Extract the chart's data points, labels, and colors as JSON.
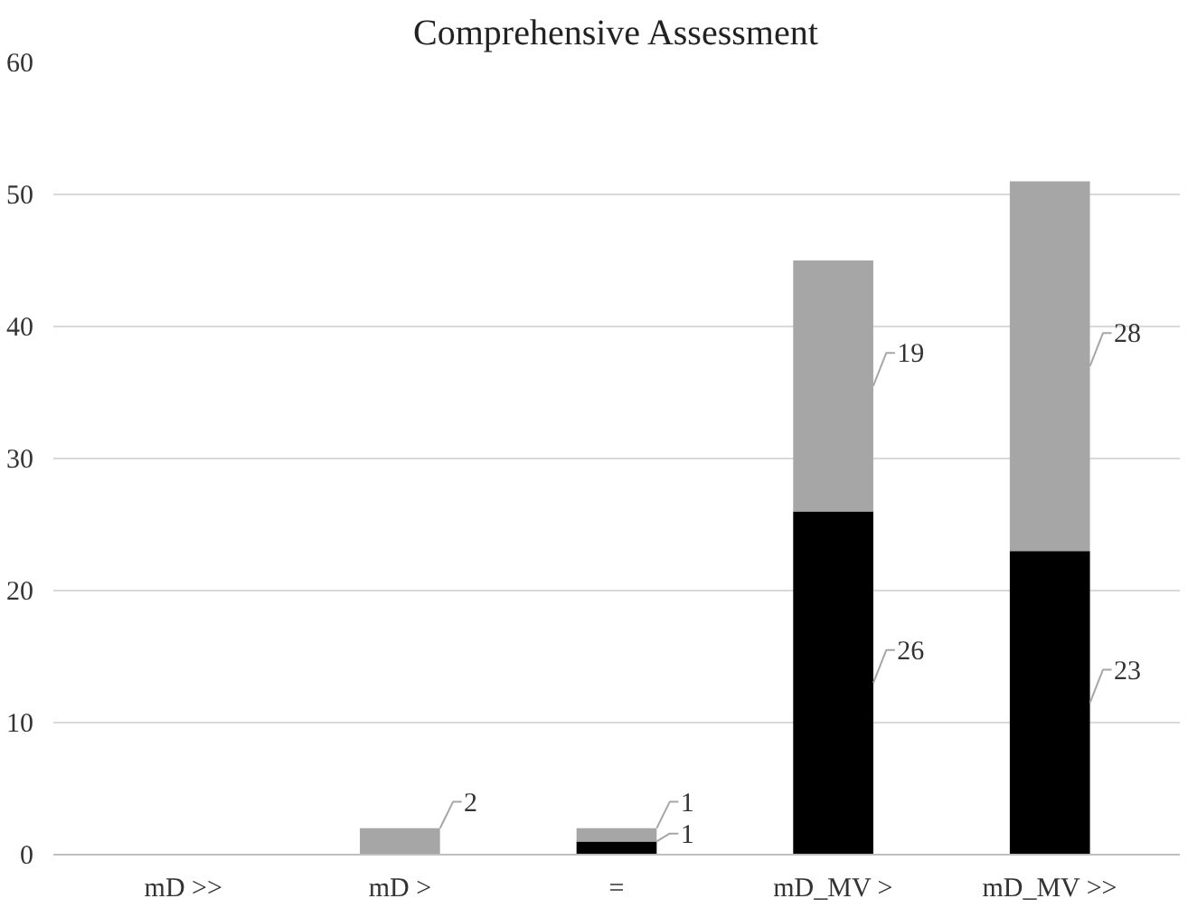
{
  "chart_data": {
    "type": "bar",
    "title": "Comprehensive Assessment",
    "categories": [
      "mD >>",
      "mD >",
      "=",
      "mD_MV >",
      "mD_MV >>"
    ],
    "stacked": true,
    "series": [
      {
        "color": "#000000",
        "values": [
          0,
          0,
          1,
          26,
          23
        ],
        "value_labels": [
          null,
          null,
          "1",
          "26",
          "23"
        ]
      },
      {
        "color": "#a6a6a6",
        "values": [
          0,
          2,
          1,
          19,
          28
        ],
        "value_labels": [
          null,
          "2",
          "1",
          "19",
          "28"
        ]
      }
    ],
    "ylim": [
      0,
      60
    ],
    "yticks": [
      0,
      10,
      20,
      30,
      40,
      50,
      60
    ],
    "grid": "y"
  }
}
